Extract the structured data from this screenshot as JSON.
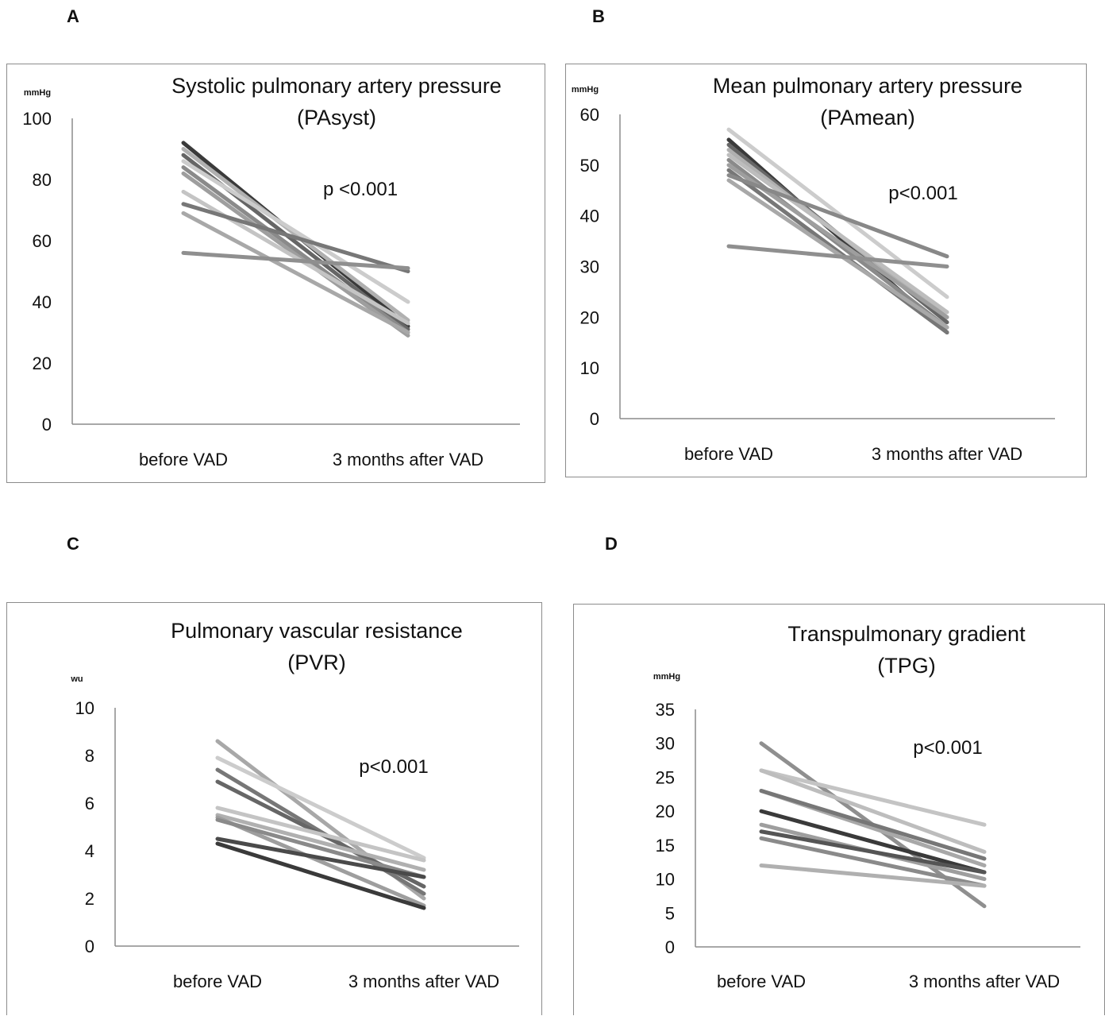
{
  "panels": [
    {
      "letter": "A"
    },
    {
      "letter": "B"
    },
    {
      "letter": "C"
    },
    {
      "letter": "D"
    }
  ],
  "chart_data": [
    {
      "type": "line",
      "title": [
        "Systolic pulmonary artery pressure",
        "(PAsyst)"
      ],
      "unit": "mmHg",
      "categories": [
        "before VAD",
        "3 months after VAD"
      ],
      "ylim": [
        0,
        100
      ],
      "yticks": [
        "0",
        "20",
        "40",
        "60",
        "80",
        "100"
      ],
      "annotation": "p <0.001",
      "grid": false,
      "series": [
        {
          "values": [
            92,
            32
          ],
          "color": "#3a3a3a"
        },
        {
          "values": [
            90,
            34
          ],
          "color": "#b0b0b0"
        },
        {
          "values": [
            88,
            31
          ],
          "color": "#666666"
        },
        {
          "values": [
            86,
            40
          ],
          "color": "#cccccc"
        },
        {
          "values": [
            84,
            30
          ],
          "color": "#8a8a8a"
        },
        {
          "values": [
            82,
            29
          ],
          "color": "#9e9e9e"
        },
        {
          "values": [
            76,
            33
          ],
          "color": "#c4c4c4"
        },
        {
          "values": [
            72,
            50
          ],
          "color": "#777777"
        },
        {
          "values": [
            69,
            30
          ],
          "color": "#a8a8a8"
        },
        {
          "values": [
            56,
            51
          ],
          "color": "#8f8f8f"
        }
      ]
    },
    {
      "type": "line",
      "title": [
        "Mean pulmonary artery pressure",
        "(PAmean)"
      ],
      "unit": "mmHg",
      "categories": [
        "before VAD",
        "3 months after VAD"
      ],
      "ylim": [
        0,
        60
      ],
      "yticks": [
        "0",
        "10",
        "20",
        "30",
        "40",
        "50",
        "60"
      ],
      "annotation": "p<0.001",
      "grid": false,
      "series": [
        {
          "values": [
            57,
            24
          ],
          "color": "#cccccc"
        },
        {
          "values": [
            55,
            17
          ],
          "color": "#3a3a3a"
        },
        {
          "values": [
            54,
            19
          ],
          "color": "#666666"
        },
        {
          "values": [
            53,
            20
          ],
          "color": "#b0b0b0"
        },
        {
          "values": [
            52,
            21
          ],
          "color": "#bdbdbd"
        },
        {
          "values": [
            51,
            18
          ],
          "color": "#8a8a8a"
        },
        {
          "values": [
            50,
            20
          ],
          "color": "#9e9e9e"
        },
        {
          "values": [
            49,
            17
          ],
          "color": "#777777"
        },
        {
          "values": [
            48,
            32
          ],
          "color": "#888888"
        },
        {
          "values": [
            47,
            18
          ],
          "color": "#a8a8a8"
        },
        {
          "values": [
            34,
            30
          ],
          "color": "#8f8f8f"
        }
      ]
    },
    {
      "type": "line",
      "title": [
        "Pulmonary vascular resistance",
        "(PVR)"
      ],
      "unit": "wu",
      "categories": [
        "before VAD",
        "3 months after VAD"
      ],
      "ylim": [
        0,
        10
      ],
      "yticks": [
        "0",
        "2",
        "4",
        "6",
        "8",
        "10"
      ],
      "annotation": "p<0.001",
      "grid": false,
      "series": [
        {
          "values": [
            8.6,
            2.0
          ],
          "color": "#a8a8a8"
        },
        {
          "values": [
            7.9,
            3.7
          ],
          "color": "#cccccc"
        },
        {
          "values": [
            7.4,
            2.2
          ],
          "color": "#777777"
        },
        {
          "values": [
            6.9,
            2.5
          ],
          "color": "#666666"
        },
        {
          "values": [
            5.8,
            3.6
          ],
          "color": "#c4c4c4"
        },
        {
          "values": [
            5.5,
            3.2
          ],
          "color": "#b0b0b0"
        },
        {
          "values": [
            5.4,
            1.7
          ],
          "color": "#9e9e9e"
        },
        {
          "values": [
            5.3,
            2.9
          ],
          "color": "#8a8a8a"
        },
        {
          "values": [
            4.5,
            2.9
          ],
          "color": "#4a4a4a"
        },
        {
          "values": [
            4.3,
            1.6
          ],
          "color": "#3a3a3a"
        }
      ]
    },
    {
      "type": "line",
      "title": [
        "Transpulmonary gradient",
        "(TPG)"
      ],
      "unit": "mmHg",
      "categories": [
        "before VAD",
        "3 months after  VAD"
      ],
      "ylim": [
        0,
        35
      ],
      "yticks": [
        "0",
        "5",
        "10",
        "15",
        "20",
        "25",
        "30",
        "35"
      ],
      "annotation": "p<0.001",
      "grid": false,
      "series": [
        {
          "values": [
            30,
            6
          ],
          "color": "#8f8f8f"
        },
        {
          "values": [
            26,
            18
          ],
          "color": "#c4c4c4"
        },
        {
          "values": [
            26,
            14
          ],
          "color": "#bdbdbd"
        },
        {
          "values": [
            23,
            12
          ],
          "color": "#a8a8a8"
        },
        {
          "values": [
            23,
            13
          ],
          "color": "#777777"
        },
        {
          "values": [
            20,
            11
          ],
          "color": "#3a3a3a"
        },
        {
          "values": [
            18,
            10
          ],
          "color": "#9e9e9e"
        },
        {
          "values": [
            17,
            11
          ],
          "color": "#555555"
        },
        {
          "values": [
            16,
            9
          ],
          "color": "#8a8a8a"
        },
        {
          "values": [
            12,
            9
          ],
          "color": "#b0b0b0"
        }
      ]
    }
  ]
}
